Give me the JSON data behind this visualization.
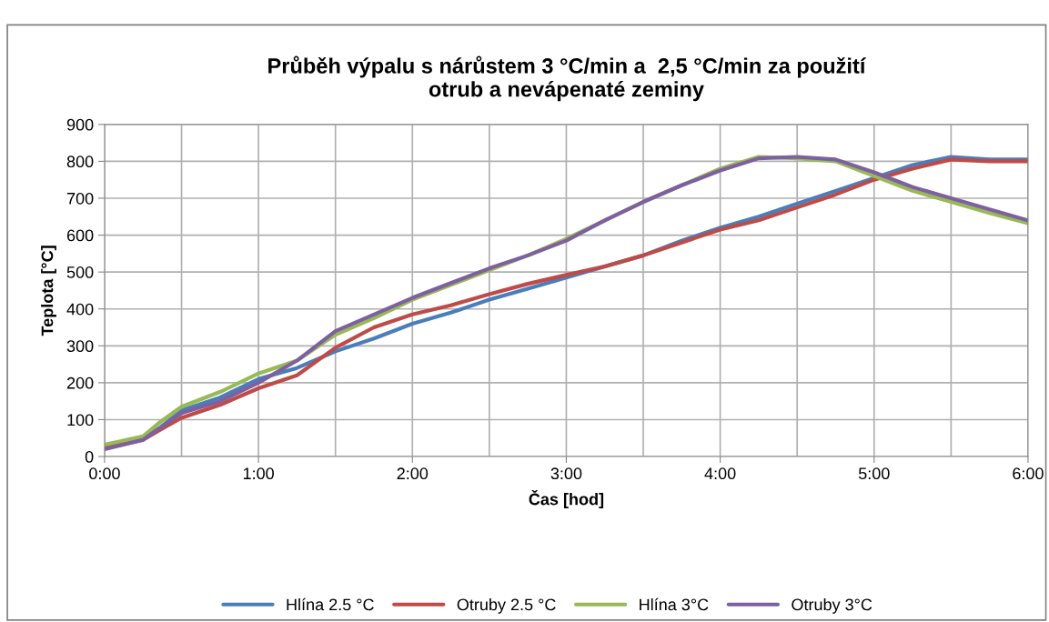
{
  "chart_data": {
    "type": "line",
    "title": "Průběh výpalu s nárůstem 3 °C/min a  2,5 °C/min za použití\notrub a nevápenaté zeminy",
    "xlabel": "Čas [hod]",
    "ylabel": "Teplota [°C]",
    "x": [
      0,
      0.25,
      0.35,
      0.5,
      0.75,
      1.0,
      1.25,
      1.5,
      1.75,
      2.0,
      2.25,
      2.5,
      2.75,
      3.0,
      3.25,
      3.5,
      3.75,
      4.0,
      4.25,
      4.5,
      4.75,
      5.0,
      5.25,
      5.5,
      5.75,
      6.0
    ],
    "series": [
      {
        "name": "Hlína 2.5 °C",
        "color": "#4a7ebb",
        "values": [
          22,
          48,
          75,
          125,
          160,
          210,
          240,
          285,
          320,
          360,
          390,
          425,
          455,
          485,
          515,
          545,
          585,
          620,
          650,
          685,
          720,
          755,
          790,
          812,
          805,
          805
        ]
      },
      {
        "name": "Otruby 2.5 °C",
        "color": "#be4b48",
        "values": [
          22,
          45,
          70,
          105,
          140,
          185,
          220,
          295,
          350,
          385,
          410,
          440,
          468,
          492,
          515,
          545,
          580,
          615,
          640,
          675,
          710,
          750,
          780,
          805,
          800,
          800
        ]
      },
      {
        "name": "Hlína 3°C",
        "color": "#98b954",
        "values": [
          32,
          55,
          90,
          135,
          175,
          225,
          260,
          330,
          375,
          425,
          465,
          505,
          545,
          590,
          640,
          690,
          735,
          780,
          812,
          808,
          800,
          760,
          720,
          690,
          660,
          632
        ]
      },
      {
        "name": "Otruby 3°C",
        "color": "#7d60a0",
        "values": [
          20,
          45,
          75,
          118,
          150,
          200,
          260,
          340,
          385,
          430,
          470,
          510,
          545,
          585,
          640,
          690,
          735,
          775,
          808,
          812,
          805,
          770,
          730,
          700,
          670,
          640
        ]
      }
    ],
    "xlim": [
      0,
      6
    ],
    "ylim": [
      0,
      900
    ],
    "xticks": [
      {
        "value": 0,
        "label": "0:00"
      },
      {
        "value": 0.5,
        "label": null
      },
      {
        "value": 1,
        "label": "1:00"
      },
      {
        "value": 1.5,
        "label": null
      },
      {
        "value": 2,
        "label": "2:00"
      },
      {
        "value": 2.5,
        "label": null
      },
      {
        "value": 3,
        "label": "3:00"
      },
      {
        "value": 3.5,
        "label": null
      },
      {
        "value": 4,
        "label": "4:00"
      },
      {
        "value": 4.5,
        "label": null
      },
      {
        "value": 5,
        "label": "5:00"
      },
      {
        "value": 5.5,
        "label": null
      },
      {
        "value": 6,
        "label": "6:00"
      }
    ],
    "yticks": [
      0,
      100,
      200,
      300,
      400,
      500,
      600,
      700,
      800,
      900
    ],
    "grid": true,
    "legend": "bottom",
    "marker": "none",
    "line_style": "solid"
  }
}
